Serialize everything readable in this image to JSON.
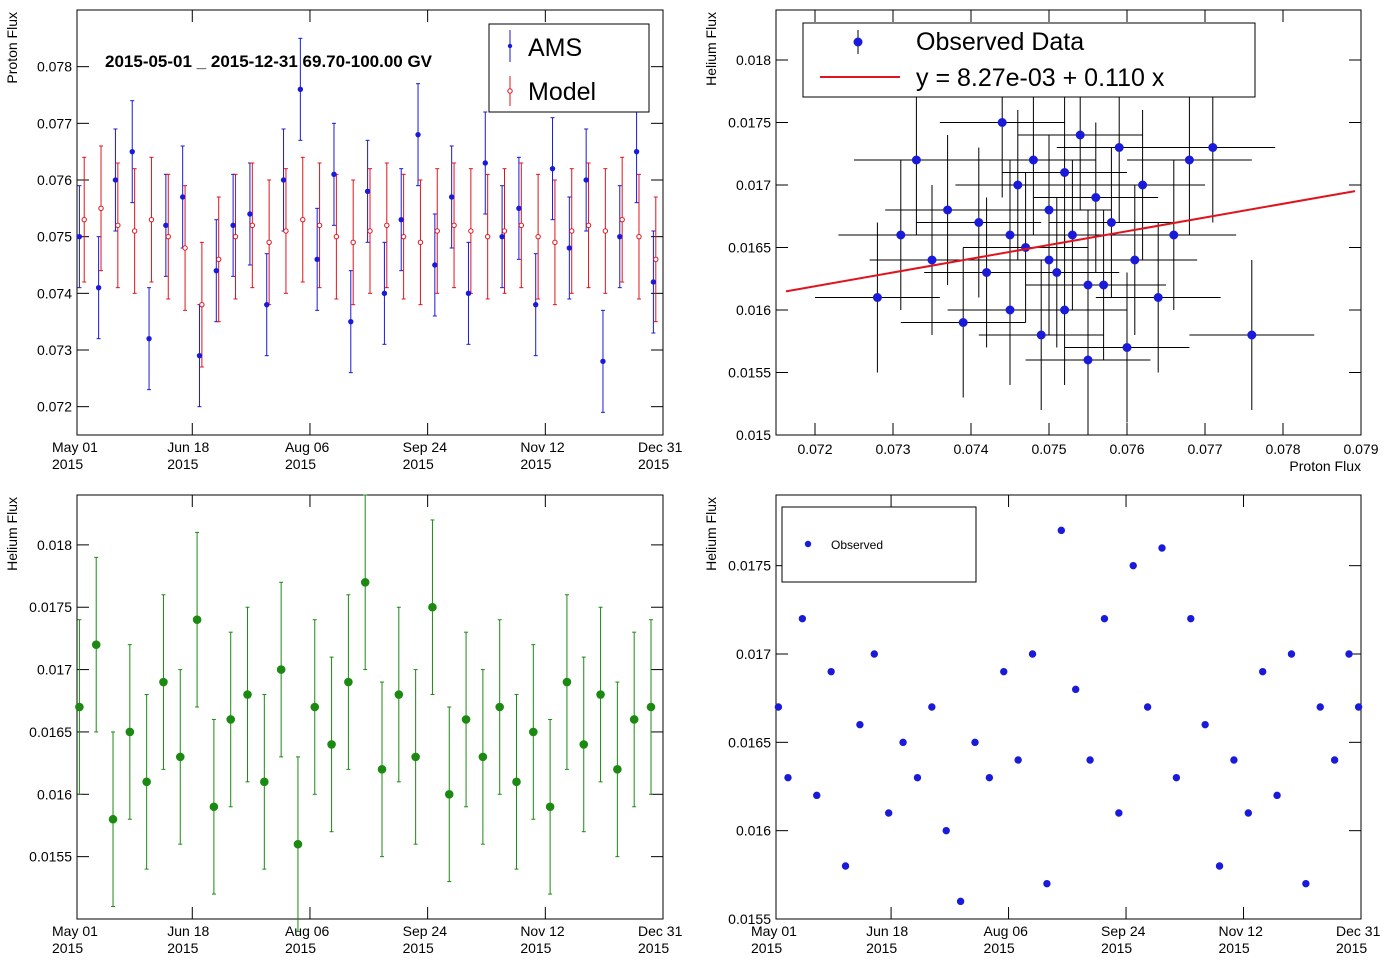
{
  "colors": {
    "ams": "#1a1adb",
    "model": "#e0141e",
    "fit": "#e0141e",
    "scatter_err": "#000000",
    "scatter_marker": "#1a1adb",
    "helium": "#1c8a12",
    "helium_obs": "#1a1adb",
    "axis": "#000000"
  },
  "chart_data": [
    {
      "id": "proton-time",
      "type": "scatter",
      "title": "2015-05-01 _ 2015-12-31   69.70-100.00 GV",
      "xlabel": "",
      "ylabel": "Proton Flux",
      "xlim": [
        "2015-05-01",
        "2015-12-31"
      ],
      "ylim": [
        0.0715,
        0.079
      ],
      "x_ticks": [
        {
          "date": "2015-05-01",
          "label": [
            "May 01",
            "2015"
          ]
        },
        {
          "date": "2015-06-18",
          "label": [
            "Jun 18",
            "2015"
          ]
        },
        {
          "date": "2015-08-06",
          "label": [
            "Aug 06",
            "2015"
          ]
        },
        {
          "date": "2015-09-24",
          "label": [
            "Sep 24",
            "2015"
          ]
        },
        {
          "date": "2015-11-12",
          "label": [
            "Nov 12",
            "2015"
          ]
        },
        {
          "date": "2015-12-31",
          "label": [
            "Dec 31",
            "2015"
          ]
        }
      ],
      "y_ticks": [
        "0.072",
        "0.073",
        "0.074",
        "0.075",
        "0.076",
        "0.077",
        "0.078"
      ],
      "legend": {
        "placement": "top-right",
        "entries": [
          "AMS",
          "Model"
        ]
      },
      "series": [
        {
          "name": "AMS",
          "marker": "filled-dot",
          "x": [
            "2015-05-02",
            "2015-05-10",
            "2015-05-17",
            "2015-05-24",
            "2015-05-31",
            "2015-06-07",
            "2015-06-14",
            "2015-06-21",
            "2015-06-28",
            "2015-07-05",
            "2015-07-12",
            "2015-07-19",
            "2015-07-26",
            "2015-08-02",
            "2015-08-09",
            "2015-08-16",
            "2015-08-23",
            "2015-08-30",
            "2015-09-06",
            "2015-09-13",
            "2015-09-20",
            "2015-09-27",
            "2015-10-04",
            "2015-10-11",
            "2015-10-18",
            "2015-10-25",
            "2015-11-01",
            "2015-11-08",
            "2015-11-15",
            "2015-11-22",
            "2015-11-29",
            "2015-12-06",
            "2015-12-13",
            "2015-12-20",
            "2015-12-27"
          ],
          "y": [
            0.075,
            0.0741,
            0.076,
            0.0765,
            0.0732,
            0.0752,
            0.0757,
            0.0729,
            0.0744,
            0.0752,
            0.0754,
            0.0738,
            0.076,
            0.0776,
            0.0746,
            0.0761,
            0.0735,
            0.0758,
            0.074,
            0.0753,
            0.0768,
            0.0745,
            0.0757,
            0.074,
            0.0763,
            0.075,
            0.0755,
            0.0738,
            0.0762,
            0.0748,
            0.076,
            0.0728,
            0.075,
            0.0765,
            0.0742
          ],
          "err": [
            0.0009,
            0.0009,
            0.0009,
            0.0009,
            0.0009,
            0.0009,
            0.0009,
            0.0009,
            0.0009,
            0.0009,
            0.0009,
            0.0009,
            0.0009,
            0.0009,
            0.0009,
            0.0009,
            0.0009,
            0.0009,
            0.0009,
            0.0009,
            0.0009,
            0.0009,
            0.0009,
            0.0009,
            0.0009,
            0.0009,
            0.0009,
            0.0009,
            0.0009,
            0.0009,
            0.0009,
            0.0009,
            0.0009,
            0.0009,
            0.0009
          ]
        },
        {
          "name": "Model",
          "marker": "open-circle",
          "x": [
            "2015-05-04",
            "2015-05-11",
            "2015-05-18",
            "2015-05-25",
            "2015-06-01",
            "2015-06-08",
            "2015-06-15",
            "2015-06-22",
            "2015-06-29",
            "2015-07-06",
            "2015-07-13",
            "2015-07-20",
            "2015-07-27",
            "2015-08-03",
            "2015-08-10",
            "2015-08-17",
            "2015-08-24",
            "2015-08-31",
            "2015-09-07",
            "2015-09-14",
            "2015-09-21",
            "2015-09-28",
            "2015-10-05",
            "2015-10-12",
            "2015-10-19",
            "2015-10-26",
            "2015-11-02",
            "2015-11-09",
            "2015-11-16",
            "2015-11-23",
            "2015-11-30",
            "2015-12-07",
            "2015-12-14",
            "2015-12-21",
            "2015-12-28"
          ],
          "y": [
            0.0753,
            0.0755,
            0.0752,
            0.0751,
            0.0753,
            0.075,
            0.0748,
            0.0738,
            0.0746,
            0.075,
            0.0752,
            0.0749,
            0.0751,
            0.0753,
            0.0752,
            0.075,
            0.0749,
            0.0751,
            0.0752,
            0.075,
            0.0749,
            0.0751,
            0.0752,
            0.0751,
            0.075,
            0.0751,
            0.0752,
            0.075,
            0.0749,
            0.0751,
            0.0752,
            0.0751,
            0.0753,
            0.075,
            0.0746
          ],
          "err": [
            0.0011,
            0.0011,
            0.0011,
            0.0011,
            0.0011,
            0.0011,
            0.0011,
            0.0011,
            0.0011,
            0.0011,
            0.0011,
            0.0011,
            0.0011,
            0.0011,
            0.0011,
            0.0011,
            0.0011,
            0.0011,
            0.0011,
            0.0011,
            0.0011,
            0.0011,
            0.0011,
            0.0011,
            0.0011,
            0.0011,
            0.0011,
            0.0011,
            0.0011,
            0.0011,
            0.0011,
            0.0011,
            0.0011,
            0.0011,
            0.0011
          ]
        }
      ]
    },
    {
      "id": "flux-correlation",
      "type": "scatter",
      "title": "",
      "xlabel": "Proton Flux",
      "ylabel": "Helium Flux",
      "xlim": [
        0.0715,
        0.079
      ],
      "ylim": [
        0.015,
        0.0184
      ],
      "x_ticks": [
        "0.072",
        "0.073",
        "0.074",
        "0.075",
        "0.076",
        "0.077",
        "0.078",
        "0.079"
      ],
      "y_ticks": [
        "0.015",
        "0.0155",
        "0.016",
        "0.0165",
        "0.017",
        "0.0175",
        "0.018"
      ],
      "legend": {
        "placement": "top-center",
        "entries": [
          "Observed Data",
          "y = 8.27e-03 + 0.110 x"
        ]
      },
      "fit": {
        "intercept": 0.00827,
        "slope": 0.11,
        "x_range": [
          0.0715,
          0.079
        ]
      },
      "series": [
        {
          "name": "Observed Data",
          "marker": "filled-dot",
          "x": [
            0.0728,
            0.0731,
            0.0733,
            0.0735,
            0.0737,
            0.0739,
            0.0741,
            0.0742,
            0.0744,
            0.0745,
            0.0746,
            0.0747,
            0.0748,
            0.0749,
            0.075,
            0.0751,
            0.0752,
            0.0752,
            0.0753,
            0.0754,
            0.0755,
            0.0756,
            0.0757,
            0.0758,
            0.0759,
            0.076,
            0.0761,
            0.0762,
            0.0764,
            0.0766,
            0.0768,
            0.0771,
            0.0776,
            0.0745,
            0.075,
            0.0755
          ],
          "y": [
            0.0161,
            0.0166,
            0.0172,
            0.0164,
            0.0168,
            0.0159,
            0.0167,
            0.0163,
            0.0175,
            0.016,
            0.017,
            0.0165,
            0.0172,
            0.0158,
            0.0168,
            0.0163,
            0.0171,
            0.016,
            0.0166,
            0.0174,
            0.0156,
            0.0169,
            0.0162,
            0.0167,
            0.0173,
            0.0157,
            0.0164,
            0.017,
            0.0161,
            0.0166,
            0.0172,
            0.0173,
            0.0158,
            0.0166,
            0.0164,
            0.0162
          ],
          "xerr": [
            0.0008,
            0.0008,
            0.0008,
            0.0008,
            0.0008,
            0.0008,
            0.0008,
            0.0008,
            0.0008,
            0.0008,
            0.0008,
            0.0008,
            0.0008,
            0.0008,
            0.0008,
            0.0008,
            0.0008,
            0.0008,
            0.0008,
            0.0008,
            0.0008,
            0.0008,
            0.0008,
            0.0008,
            0.0008,
            0.0008,
            0.0008,
            0.0008,
            0.0008,
            0.0008,
            0.0008,
            0.0008,
            0.0008,
            0.0008,
            0.0008,
            0.0008
          ],
          "yerr": [
            0.0006,
            0.0006,
            0.0006,
            0.0006,
            0.0006,
            0.0006,
            0.0006,
            0.0006,
            0.0006,
            0.0006,
            0.0006,
            0.0006,
            0.0006,
            0.0006,
            0.0006,
            0.0006,
            0.0006,
            0.0006,
            0.0006,
            0.0006,
            0.0006,
            0.0006,
            0.0006,
            0.0006,
            0.0006,
            0.0006,
            0.0006,
            0.0006,
            0.0006,
            0.0006,
            0.0006,
            0.0006,
            0.0006,
            0.0006,
            0.0006,
            0.0006
          ]
        }
      ]
    },
    {
      "id": "helium-time",
      "type": "scatter",
      "title": "",
      "xlabel": "",
      "ylabel": "Helium Flux",
      "xlim": [
        "2015-05-01",
        "2015-12-31"
      ],
      "ylim": [
        0.015,
        0.0184
      ],
      "x_ticks": [
        {
          "date": "2015-05-01",
          "label": [
            "May 01",
            "2015"
          ]
        },
        {
          "date": "2015-06-18",
          "label": [
            "Jun 18",
            "2015"
          ]
        },
        {
          "date": "2015-08-06",
          "label": [
            "Aug 06",
            "2015"
          ]
        },
        {
          "date": "2015-09-24",
          "label": [
            "Sep 24",
            "2015"
          ]
        },
        {
          "date": "2015-11-12",
          "label": [
            "Nov 12",
            "2015"
          ]
        },
        {
          "date": "2015-12-31",
          "label": [
            "Dec 31",
            "2015"
          ]
        }
      ],
      "y_ticks": [
        "0.0155",
        "0.016",
        "0.0165",
        "0.017",
        "0.0175",
        "0.018"
      ],
      "series": [
        {
          "name": "",
          "marker": "filled-dot",
          "x": [
            "2015-05-02",
            "2015-05-09",
            "2015-05-16",
            "2015-05-23",
            "2015-05-30",
            "2015-06-06",
            "2015-06-13",
            "2015-06-20",
            "2015-06-27",
            "2015-07-04",
            "2015-07-11",
            "2015-07-18",
            "2015-07-25",
            "2015-08-01",
            "2015-08-08",
            "2015-08-15",
            "2015-08-22",
            "2015-08-29",
            "2015-09-05",
            "2015-09-12",
            "2015-09-19",
            "2015-09-26",
            "2015-10-03",
            "2015-10-10",
            "2015-10-17",
            "2015-10-24",
            "2015-10-31",
            "2015-11-07",
            "2015-11-14",
            "2015-11-21",
            "2015-11-28",
            "2015-12-05",
            "2015-12-12",
            "2015-12-19",
            "2015-12-26"
          ],
          "y": [
            0.0167,
            0.0172,
            0.0158,
            0.0165,
            0.0161,
            0.0169,
            0.0163,
            0.0174,
            0.0159,
            0.0166,
            0.0168,
            0.0161,
            0.017,
            0.0156,
            0.0167,
            0.0164,
            0.0169,
            0.0177,
            0.0162,
            0.0168,
            0.0163,
            0.0175,
            0.016,
            0.0166,
            0.0163,
            0.0167,
            0.0161,
            0.0165,
            0.0159,
            0.0169,
            0.0164,
            0.0168,
            0.0162,
            0.0166,
            0.0167
          ],
          "err": [
            0.0007,
            0.0007,
            0.0007,
            0.0007,
            0.0007,
            0.0007,
            0.0007,
            0.0007,
            0.0007,
            0.0007,
            0.0007,
            0.0007,
            0.0007,
            0.0007,
            0.0007,
            0.0007,
            0.0007,
            0.0007,
            0.0007,
            0.0007,
            0.0007,
            0.0007,
            0.0007,
            0.0007,
            0.0007,
            0.0007,
            0.0007,
            0.0007,
            0.0007,
            0.0007,
            0.0007,
            0.0007,
            0.0007,
            0.0007,
            0.0007
          ]
        }
      ]
    },
    {
      "id": "helium-observed",
      "type": "scatter",
      "title": "",
      "xlabel": "",
      "ylabel": "Helium Flux",
      "xlim": [
        "2015-05-01",
        "2015-12-31"
      ],
      "ylim": [
        0.0155,
        0.0179
      ],
      "x_ticks": [
        {
          "date": "2015-05-01",
          "label": [
            "May 01",
            "2015"
          ]
        },
        {
          "date": "2015-06-18",
          "label": [
            "Jun 18",
            "2015"
          ]
        },
        {
          "date": "2015-08-06",
          "label": [
            "Aug 06",
            "2015"
          ]
        },
        {
          "date": "2015-09-24",
          "label": [
            "Sep 24",
            "2015"
          ]
        },
        {
          "date": "2015-11-12",
          "label": [
            "Nov 12",
            "2015"
          ]
        },
        {
          "date": "2015-12-31",
          "label": [
            "Dec 31",
            "2015"
          ]
        }
      ],
      "y_ticks": [
        "0.0155",
        "0.016",
        "0.0165",
        "0.017",
        "0.0175"
      ],
      "legend": {
        "placement": "top-left",
        "entries": [
          "Observed"
        ]
      },
      "series": [
        {
          "name": "Observed",
          "marker": "filled-dot",
          "x": [
            "2015-05-02",
            "2015-05-06",
            "2015-05-12",
            "2015-05-18",
            "2015-05-24",
            "2015-05-30",
            "2015-06-05",
            "2015-06-11",
            "2015-06-17",
            "2015-06-23",
            "2015-06-29",
            "2015-07-05",
            "2015-07-11",
            "2015-07-17",
            "2015-07-23",
            "2015-07-29",
            "2015-08-04",
            "2015-08-10",
            "2015-08-16",
            "2015-08-22",
            "2015-08-28",
            "2015-09-03",
            "2015-09-09",
            "2015-09-15",
            "2015-09-21",
            "2015-09-27",
            "2015-10-03",
            "2015-10-09",
            "2015-10-15",
            "2015-10-21",
            "2015-10-27",
            "2015-11-02",
            "2015-11-08",
            "2015-11-14",
            "2015-11-20",
            "2015-11-26",
            "2015-12-02",
            "2015-12-08",
            "2015-12-14",
            "2015-12-20",
            "2015-12-26",
            "2015-12-30"
          ],
          "y": [
            0.0167,
            0.0163,
            0.0172,
            0.0162,
            0.0169,
            0.0158,
            0.0166,
            0.017,
            0.0161,
            0.0165,
            0.0163,
            0.0167,
            0.016,
            0.0156,
            0.0165,
            0.0163,
            0.0169,
            0.0164,
            0.017,
            0.0157,
            0.0177,
            0.0168,
            0.0164,
            0.0172,
            0.0161,
            0.0175,
            0.0167,
            0.0176,
            0.0163,
            0.0172,
            0.0166,
            0.0158,
            0.0164,
            0.0161,
            0.0169,
            0.0162,
            0.017,
            0.0157,
            0.0167,
            0.0164,
            0.017,
            0.0167
          ]
        }
      ]
    }
  ]
}
